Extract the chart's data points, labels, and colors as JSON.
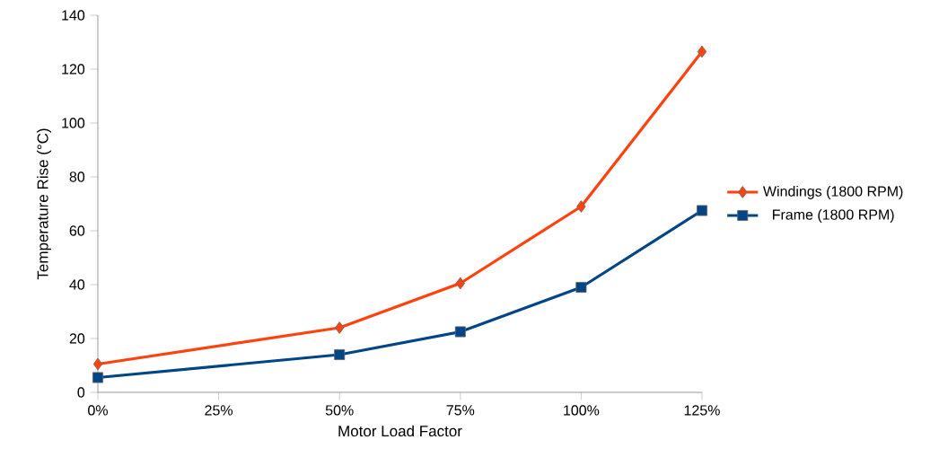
{
  "chart_data": {
    "type": "line",
    "xlabel": "Motor Load Factor",
    "ylabel": "Temperature Rise (°C)",
    "x": [
      0,
      50,
      75,
      100,
      125
    ],
    "series": [
      {
        "name": "Windings (1800 RPM)",
        "color": "#ff420e",
        "marker": "diamond",
        "values": [
          10.5,
          24,
          40.5,
          69,
          126.5
        ]
      },
      {
        "name": "Frame (1800 RPM)",
        "color": "#004586",
        "marker": "square",
        "values": [
          5.5,
          14,
          22.5,
          39,
          67.5
        ]
      }
    ],
    "xlim": [
      0,
      125
    ],
    "ylim": [
      0,
      140
    ],
    "xticks": [
      {
        "value": 0,
        "label": "0%"
      },
      {
        "value": 25,
        "label": "25%"
      },
      {
        "value": 50,
        "label": "50%"
      },
      {
        "value": 75,
        "label": "75%"
      },
      {
        "value": 100,
        "label": "100%"
      },
      {
        "value": 125,
        "label": "125%"
      }
    ],
    "yticks": [
      0,
      20,
      40,
      60,
      80,
      100,
      120,
      140
    ],
    "legend": "right",
    "line_style": "solid"
  }
}
